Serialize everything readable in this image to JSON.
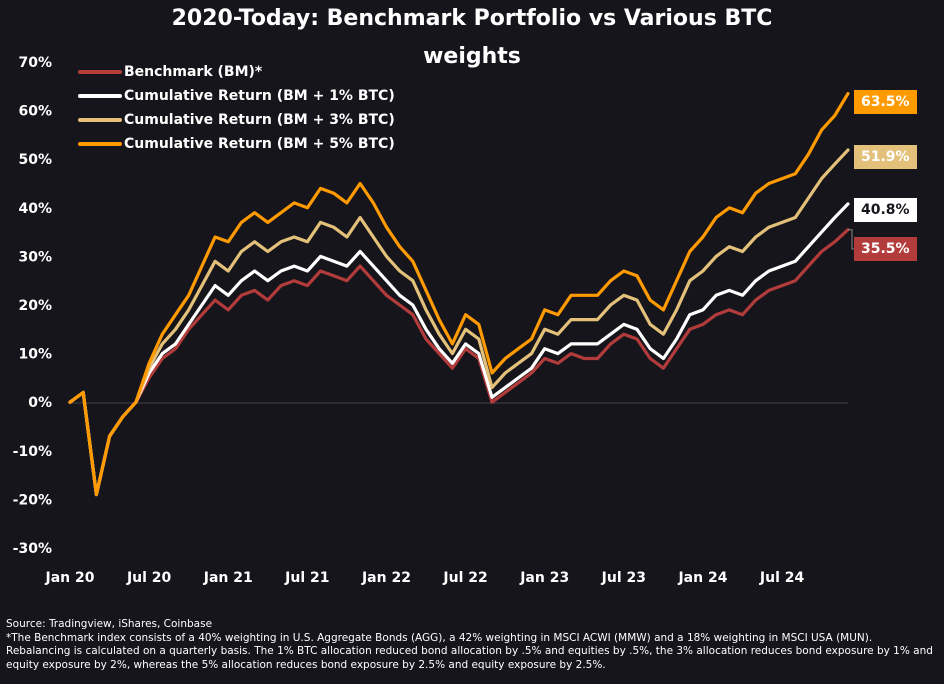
{
  "chart_data": {
    "type": "line",
    "title": "2020-Today: Benchmark Portfolio vs Various BTC weights",
    "title_lines": [
      "2020-Today: Benchmark Portfolio vs Various BTC",
      "weights"
    ],
    "xlabel": "",
    "ylabel": "",
    "ylim": [
      -30,
      70
    ],
    "y_ticks": [
      "-30%",
      "-20%",
      "-10%",
      "0%",
      "10%",
      "20%",
      "30%",
      "40%",
      "50%",
      "60%",
      "70%"
    ],
    "x_ticks": [
      "Jan 20",
      "Jul 20",
      "Jan 21",
      "Jul 21",
      "Jan 22",
      "Jul 22",
      "Jan 23",
      "Jul 23",
      "Jan 24",
      "Jul 24"
    ],
    "legend_position": "top-left",
    "grid": false,
    "x": [
      "2020-01",
      "2020-02",
      "2020-03",
      "2020-04",
      "2020-05",
      "2020-06",
      "2020-07",
      "2020-08",
      "2020-09",
      "2020-10",
      "2020-11",
      "2020-12",
      "2021-01",
      "2021-02",
      "2021-03",
      "2021-04",
      "2021-05",
      "2021-06",
      "2021-07",
      "2021-08",
      "2021-09",
      "2021-10",
      "2021-11",
      "2021-12",
      "2022-01",
      "2022-02",
      "2022-03",
      "2022-04",
      "2022-05",
      "2022-06",
      "2022-07",
      "2022-08",
      "2022-09",
      "2022-10",
      "2022-11",
      "2022-12",
      "2023-01",
      "2023-02",
      "2023-03",
      "2023-04",
      "2023-05",
      "2023-06",
      "2023-07",
      "2023-08",
      "2023-09",
      "2023-10",
      "2023-11",
      "2023-12",
      "2024-01",
      "2024-02",
      "2024-03",
      "2024-04",
      "2024-05",
      "2024-06",
      "2024-07",
      "2024-08",
      "2024-09",
      "2024-10",
      "2024-11",
      "2024-12"
    ],
    "series": [
      {
        "name": "Benchmark (BM)*",
        "color": "#b23b3b",
        "values": [
          0,
          2,
          -19,
          -7,
          -3,
          0,
          5,
          9,
          11,
          15,
          18,
          21,
          19,
          22,
          23,
          21,
          24,
          25,
          24,
          27,
          26,
          25,
          28,
          25,
          22,
          20,
          18,
          13,
          10,
          7,
          11,
          9,
          0,
          2,
          4,
          6,
          9,
          8,
          10,
          9,
          9,
          12,
          14,
          13,
          9,
          7,
          11,
          15,
          16,
          18,
          19,
          18,
          21,
          23,
          24,
          25,
          28,
          31,
          33,
          35.5
        ]
      },
      {
        "name": "Cumulative Return (BM + 1% BTC)",
        "color": "#ffffff",
        "values": [
          0,
          2,
          -19,
          -7,
          -3,
          0,
          6,
          10,
          12,
          16,
          20,
          24,
          22,
          25,
          27,
          25,
          27,
          28,
          27,
          30,
          29,
          28,
          31,
          28,
          25,
          22,
          20,
          15,
          11,
          8,
          12,
          10,
          1,
          3,
          5,
          7,
          11,
          10,
          12,
          12,
          12,
          14,
          16,
          15,
          11,
          9,
          13,
          18,
          19,
          22,
          23,
          22,
          25,
          27,
          28,
          29,
          32,
          35,
          38,
          40.8
        ]
      },
      {
        "name": "Cumulative Return (BM + 3% BTC)",
        "color": "#e3c17a",
        "values": [
          0,
          2,
          -19,
          -7,
          -3,
          0,
          7,
          12,
          15,
          19,
          24,
          29,
          27,
          31,
          33,
          31,
          33,
          34,
          33,
          37,
          36,
          34,
          38,
          34,
          30,
          27,
          25,
          19,
          14,
          10,
          15,
          13,
          3,
          6,
          8,
          10,
          15,
          14,
          17,
          17,
          17,
          20,
          22,
          21,
          16,
          14,
          19,
          25,
          27,
          30,
          32,
          31,
          34,
          36,
          37,
          38,
          42,
          46,
          49,
          51.9
        ]
      },
      {
        "name": "Cumulative Return (BM + 5% BTC)",
        "color": "#ff9a00",
        "values": [
          0,
          2,
          -19,
          -7,
          -3,
          0,
          8,
          14,
          18,
          22,
          28,
          34,
          33,
          37,
          39,
          37,
          39,
          41,
          40,
          44,
          43,
          41,
          45,
          41,
          36,
          32,
          29,
          23,
          17,
          12,
          18,
          16,
          6,
          9,
          11,
          13,
          19,
          18,
          22,
          22,
          22,
          25,
          27,
          26,
          21,
          19,
          25,
          31,
          34,
          38,
          40,
          39,
          43,
          45,
          46,
          47,
          51,
          56,
          59,
          63.5
        ]
      }
    ],
    "end_labels": [
      "63.5%",
      "51.9%",
      "40.8%",
      "35.5%"
    ]
  },
  "footnote": {
    "source": "Source: Tradingview, iShares, Coinbase",
    "text": "*The Benchmark index consists of a 40% weighting in U.S. Aggregate Bonds (AGG), a 42% weighting in MSCI ACWI (MMW) and a 18% weighting in MSCI USA (MUN). Rebalancing is calculated on a quarterly basis. The 1% BTC allocation reduced bond allocation by .5% and equities by .5%, the 3% allocation reduces bond exposure by 1% and equity exposure by 2%, whereas the 5% allocation reduces bond exposure by 2.5% and equity exposure by 2.5%."
  }
}
